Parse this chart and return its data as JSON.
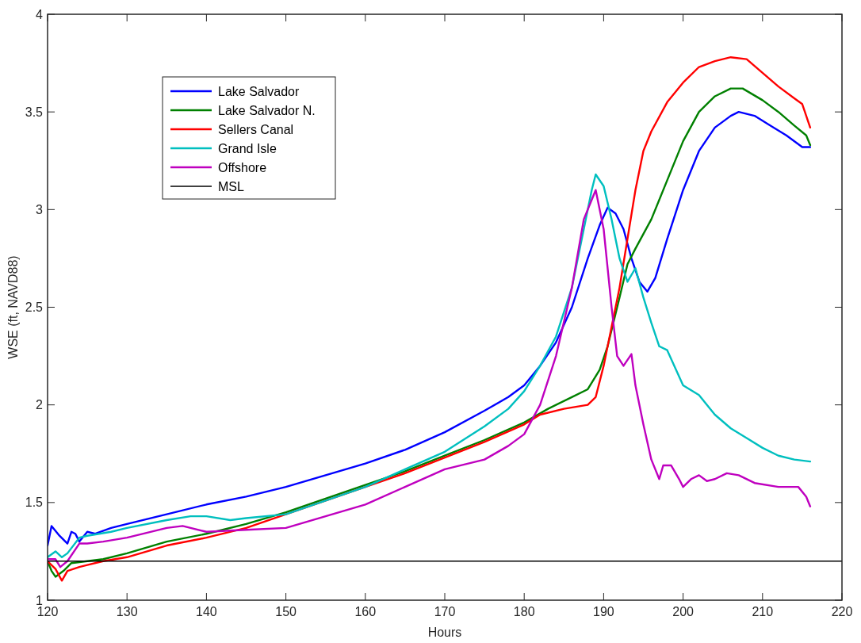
{
  "chart_data": {
    "type": "line",
    "xlabel": "Hours",
    "ylabel": "WSE (ft, NAVD88)",
    "xlim": [
      120,
      220
    ],
    "ylim": [
      1,
      4
    ],
    "xticks": [
      120,
      130,
      140,
      150,
      160,
      170,
      180,
      190,
      200,
      210,
      220
    ],
    "yticks": [
      1,
      1.5,
      2,
      2.5,
      3,
      3.5,
      4
    ],
    "grid": false,
    "legend": "top left",
    "marker": "none",
    "line_style": "solid",
    "series": [
      {
        "name": "Lake Salvador",
        "color": "#0000ff",
        "x": [
          120,
          120.5,
          121.5,
          122.5,
          123,
          123.5,
          124,
          125,
          126,
          128,
          130,
          135,
          140,
          145,
          150,
          155,
          160,
          165,
          170,
          175,
          178,
          180,
          182,
          184,
          186,
          188,
          189.5,
          190.5,
          191.5,
          192.5,
          193.5,
          194.5,
          195.5,
          196.5,
          198,
          200,
          202,
          204,
          206,
          207,
          209,
          211,
          213,
          215,
          216
        ],
        "values": [
          1.28,
          1.38,
          1.33,
          1.29,
          1.35,
          1.34,
          1.3,
          1.35,
          1.34,
          1.37,
          1.39,
          1.44,
          1.49,
          1.53,
          1.58,
          1.64,
          1.7,
          1.77,
          1.86,
          1.97,
          2.04,
          2.1,
          2.2,
          2.32,
          2.5,
          2.75,
          2.92,
          3.01,
          2.98,
          2.9,
          2.75,
          2.63,
          2.58,
          2.65,
          2.85,
          3.1,
          3.3,
          3.42,
          3.48,
          3.5,
          3.48,
          3.43,
          3.38,
          3.32,
          3.32
        ]
      },
      {
        "name": "Lake Salvador N.",
        "color": "#008000",
        "x": [
          120,
          120.5,
          121,
          122,
          123,
          125,
          127,
          130,
          135,
          140,
          145,
          150,
          155,
          160,
          165,
          170,
          175,
          180,
          183,
          186,
          188,
          189.5,
          190.5,
          192,
          193,
          194,
          196,
          198,
          200,
          202,
          204,
          206,
          207.5,
          210,
          212,
          214,
          215.5,
          216
        ],
        "values": [
          1.2,
          1.15,
          1.12,
          1.15,
          1.19,
          1.2,
          1.21,
          1.24,
          1.3,
          1.34,
          1.39,
          1.45,
          1.52,
          1.59,
          1.66,
          1.74,
          1.82,
          1.91,
          1.98,
          2.04,
          2.08,
          2.18,
          2.3,
          2.55,
          2.72,
          2.8,
          2.95,
          3.15,
          3.35,
          3.5,
          3.58,
          3.62,
          3.62,
          3.56,
          3.5,
          3.43,
          3.38,
          3.33
        ]
      },
      {
        "name": "Sellers Canal",
        "color": "#ff0000",
        "x": [
          120,
          121,
          121.8,
          122.5,
          124,
          125,
          127,
          130,
          135,
          140,
          145,
          150,
          155,
          160,
          165,
          170,
          175,
          180,
          182,
          185,
          188,
          189,
          190,
          191,
          192,
          193,
          194,
          195,
          196,
          198,
          200,
          202,
          204,
          206,
          208,
          210,
          212,
          214,
          215,
          216
        ],
        "values": [
          1.2,
          1.16,
          1.1,
          1.15,
          1.17,
          1.18,
          1.2,
          1.22,
          1.28,
          1.32,
          1.37,
          1.44,
          1.51,
          1.58,
          1.65,
          1.73,
          1.81,
          1.9,
          1.95,
          1.98,
          2.0,
          2.04,
          2.2,
          2.4,
          2.6,
          2.85,
          3.1,
          3.3,
          3.4,
          3.55,
          3.65,
          3.73,
          3.76,
          3.78,
          3.77,
          3.7,
          3.63,
          3.57,
          3.54,
          3.42
        ]
      },
      {
        "name": "Grand Isle",
        "color": "#00bfbf",
        "x": [
          120,
          121,
          121.8,
          122.5,
          124,
          125,
          128,
          130,
          135,
          138,
          140,
          143,
          145,
          150,
          155,
          160,
          165,
          170,
          175,
          178,
          180,
          182,
          184,
          186,
          187.5,
          188.5,
          189,
          190,
          191,
          192,
          193,
          194,
          195,
          196,
          197,
          198,
          200,
          202,
          204,
          206,
          208,
          210,
          212,
          214,
          216
        ],
        "values": [
          1.22,
          1.25,
          1.22,
          1.24,
          1.32,
          1.33,
          1.35,
          1.37,
          1.41,
          1.43,
          1.43,
          1.41,
          1.42,
          1.44,
          1.51,
          1.58,
          1.67,
          1.76,
          1.89,
          1.98,
          2.07,
          2.2,
          2.35,
          2.6,
          2.9,
          3.1,
          3.18,
          3.12,
          2.95,
          2.75,
          2.63,
          2.7,
          2.55,
          2.42,
          2.3,
          2.28,
          2.1,
          2.05,
          1.95,
          1.88,
          1.83,
          1.78,
          1.74,
          1.72,
          1.71
        ]
      },
      {
        "name": "Offshore",
        "color": "#bf00bf",
        "x": [
          120,
          121,
          121.6,
          122.5,
          124,
          125,
          127,
          130,
          135,
          137,
          140,
          145,
          150,
          155,
          160,
          165,
          170,
          175,
          178,
          180,
          182,
          184,
          186,
          187.5,
          188.5,
          189,
          190,
          191,
          191.7,
          192.5,
          193.5,
          194,
          195,
          196,
          197,
          197.5,
          198.5,
          199.5,
          200,
          201,
          202,
          203,
          204,
          205.5,
          207,
          209,
          212,
          214.5,
          215.5,
          216
        ],
        "values": [
          1.21,
          1.21,
          1.17,
          1.2,
          1.29,
          1.29,
          1.3,
          1.32,
          1.37,
          1.38,
          1.35,
          1.36,
          1.37,
          1.43,
          1.49,
          1.58,
          1.67,
          1.72,
          1.79,
          1.85,
          2.0,
          2.25,
          2.6,
          2.95,
          3.05,
          3.1,
          2.9,
          2.5,
          2.25,
          2.2,
          2.26,
          2.1,
          1.9,
          1.72,
          1.62,
          1.69,
          1.69,
          1.62,
          1.58,
          1.62,
          1.64,
          1.61,
          1.62,
          1.65,
          1.64,
          1.6,
          1.58,
          1.58,
          1.53,
          1.48
        ]
      },
      {
        "name": "MSL",
        "color": "#000000",
        "x": [
          120,
          220
        ],
        "values": [
          1.2,
          1.2
        ]
      }
    ]
  }
}
